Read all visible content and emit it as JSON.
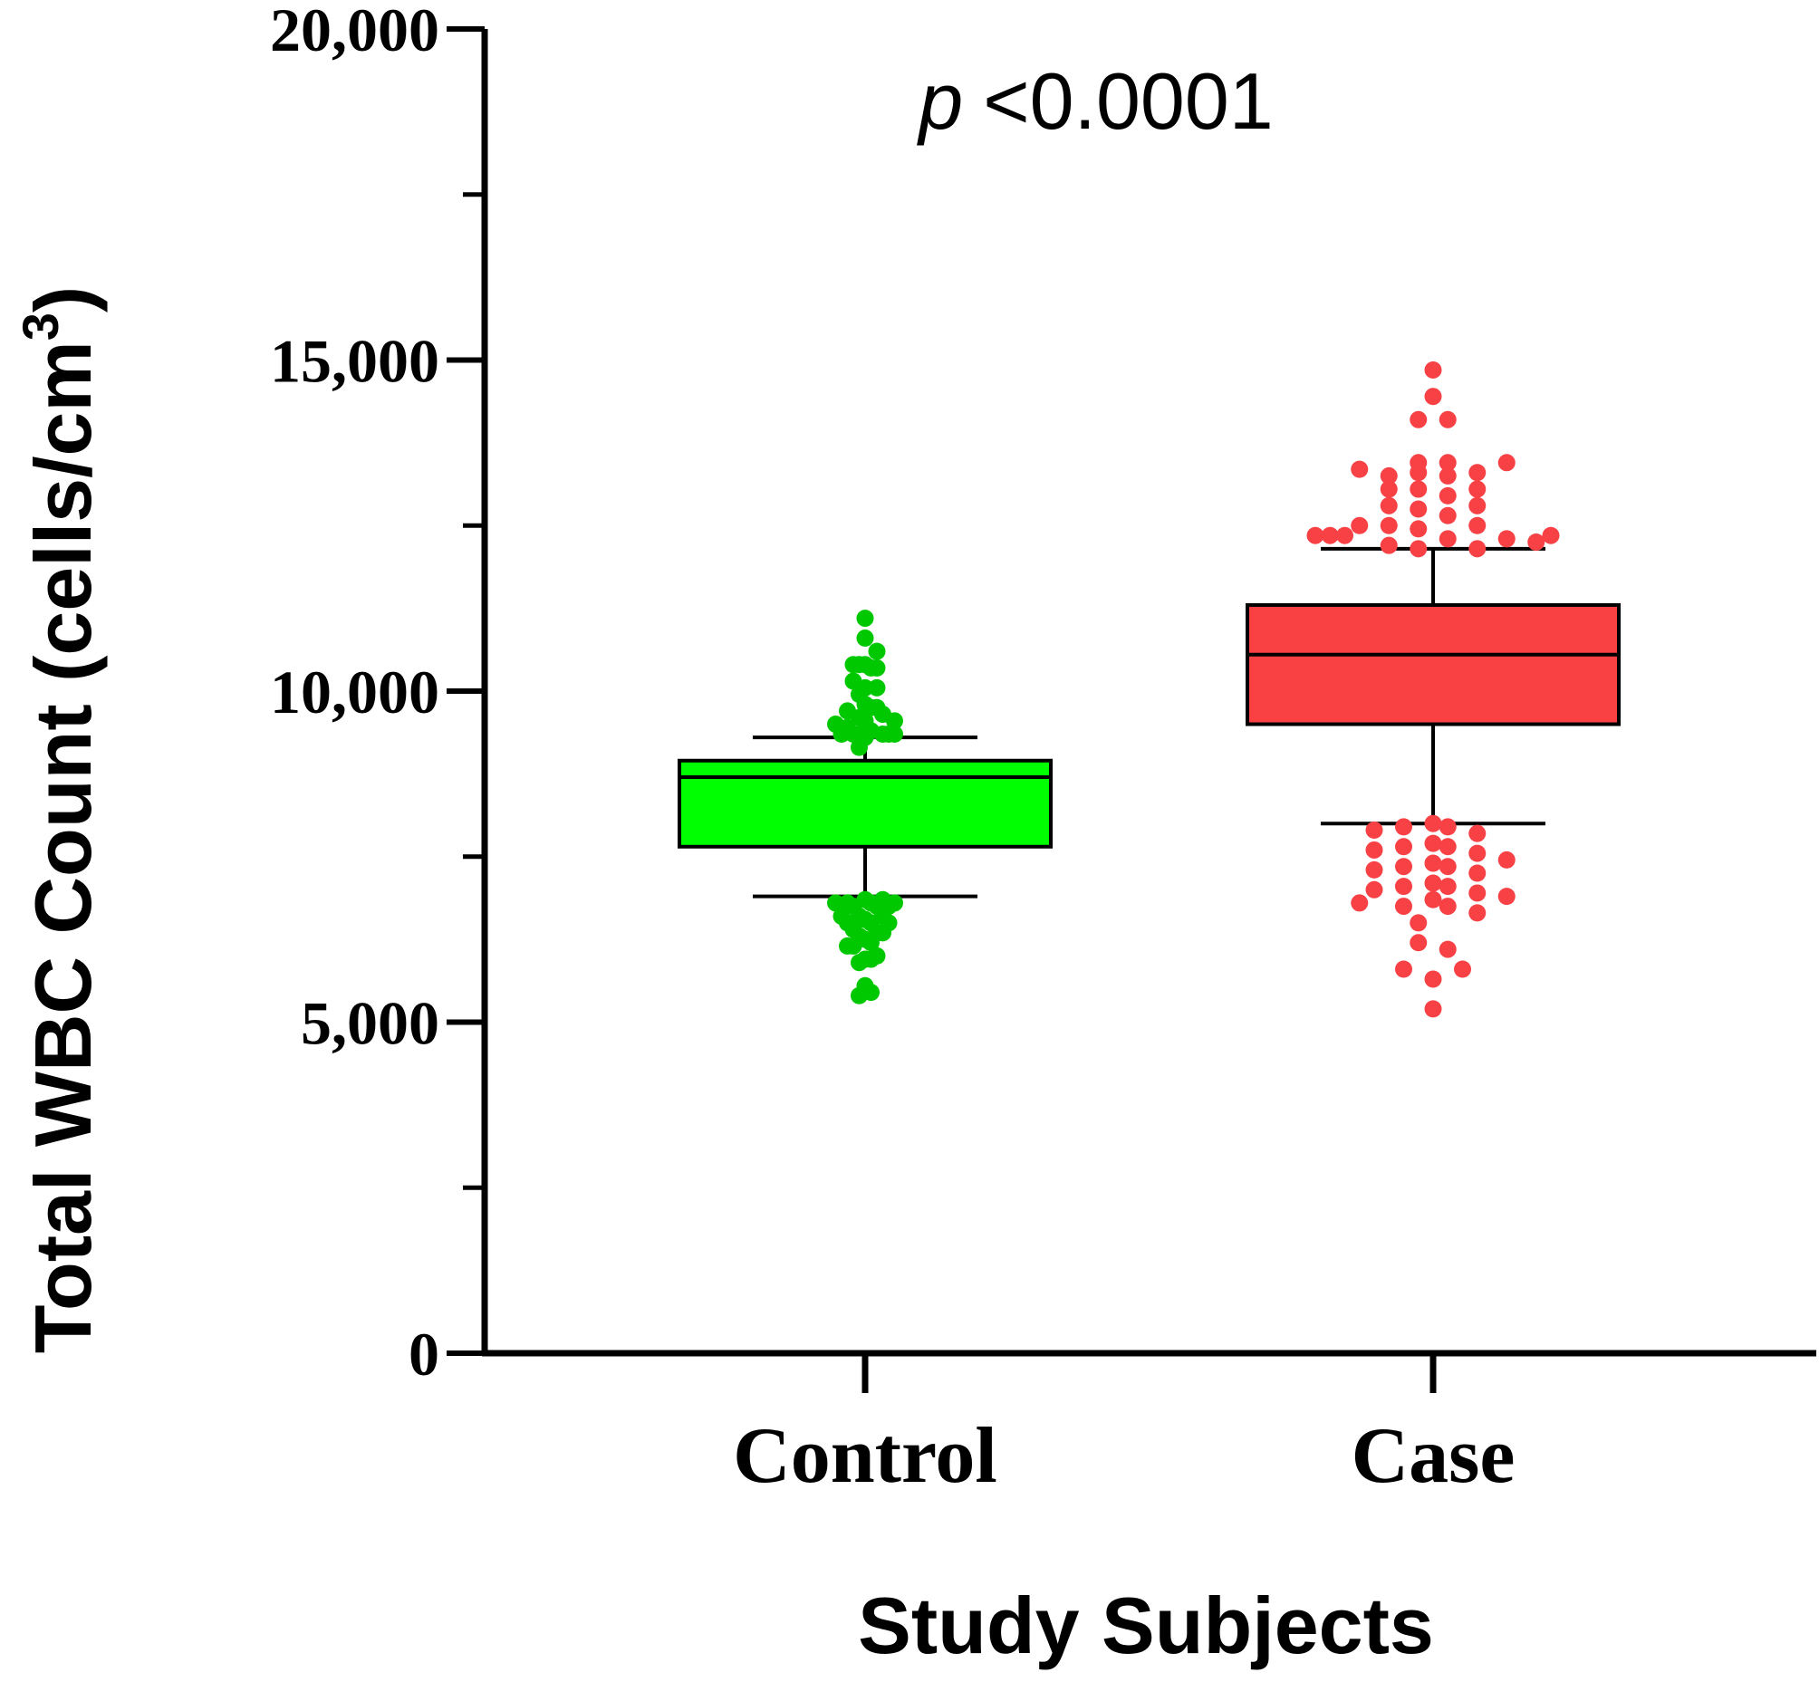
{
  "chart_data": {
    "type": "box",
    "title": "",
    "annotation": {
      "p_symbol": "p",
      "p_text": "<0.0001"
    },
    "xlabel": "Study Subjects",
    "ylabel": {
      "prefix": "Total WBC Count (cells/cm",
      "superscript": "3",
      "suffix": ")"
    },
    "ylim": [
      0,
      20000
    ],
    "yticks_major": [
      0,
      5000,
      10000,
      15000,
      20000
    ],
    "ytick_labels": [
      "0",
      "5,000",
      "10,000",
      "15,000",
      "20,000"
    ],
    "yticks_minor": [
      2500,
      7500,
      12500,
      17500
    ],
    "grid": false,
    "categories": [
      "Control",
      "Case"
    ],
    "series": [
      {
        "name": "Control",
        "color": "#00ff00",
        "point_color": "#00c800",
        "whisker_low": 6900,
        "q1": 7650,
        "median": 8700,
        "q3": 8950,
        "whisker_high": 9300,
        "points": [
          [
            -0.5,
            9500
          ],
          [
            -0.4,
            9350
          ],
          [
            -0.3,
            9700
          ],
          [
            -0.3,
            9450
          ],
          [
            -0.2,
            10400
          ],
          [
            -0.2,
            10150
          ],
          [
            -0.1,
            9600
          ],
          [
            -0.1,
            9350
          ],
          [
            -0.1,
            9150
          ],
          [
            -0.1,
            10400
          ],
          [
            -0.1,
            9950
          ],
          [
            -0.2,
            9350
          ],
          [
            0.0,
            11100
          ],
          [
            0.0,
            10800
          ],
          [
            0.0,
            10400
          ],
          [
            0.0,
            10050
          ],
          [
            0.0,
            9800
          ],
          [
            0.0,
            9550
          ],
          [
            0.0,
            9300
          ],
          [
            0.1,
            9750
          ],
          [
            0.1,
            9400
          ],
          [
            0.1,
            10350
          ],
          [
            0.2,
            10600
          ],
          [
            0.2,
            10350
          ],
          [
            0.2,
            10050
          ],
          [
            0.2,
            9750
          ],
          [
            0.3,
            9650
          ],
          [
            0.3,
            9350
          ],
          [
            0.4,
            9350
          ],
          [
            0.5,
            9550
          ],
          [
            0.5,
            9350
          ],
          [
            -0.5,
            6800
          ],
          [
            -0.4,
            6600
          ],
          [
            -0.3,
            6800
          ],
          [
            -0.3,
            6500
          ],
          [
            -0.3,
            6150
          ],
          [
            -0.2,
            6750
          ],
          [
            -0.2,
            6400
          ],
          [
            -0.2,
            6150
          ],
          [
            -0.1,
            6300
          ],
          [
            -0.1,
            5900
          ],
          [
            -0.1,
            6600
          ],
          [
            0.0,
            6850
          ],
          [
            0.0,
            6550
          ],
          [
            0.0,
            6250
          ],
          [
            0.0,
            5950
          ],
          [
            0.0,
            5550
          ],
          [
            0.1,
            6800
          ],
          [
            0.1,
            6500
          ],
          [
            0.1,
            6200
          ],
          [
            0.1,
            5950
          ],
          [
            0.2,
            6750
          ],
          [
            0.2,
            6350
          ],
          [
            0.2,
            6000
          ],
          [
            0.3,
            6850
          ],
          [
            0.3,
            6600
          ],
          [
            0.3,
            6350
          ],
          [
            0.4,
            6750
          ],
          [
            0.4,
            6500
          ],
          [
            0.5,
            6800
          ],
          [
            -0.1,
            5400
          ],
          [
            0.1,
            5450
          ]
        ]
      },
      {
        "name": "Case",
        "color": "#f94144",
        "point_color": "#f74145",
        "whisker_low": 8000,
        "q1": 9500,
        "median": 10550,
        "q3": 11300,
        "whisker_high": 12150,
        "points": [
          [
            -0.4,
            12350
          ],
          [
            -0.35,
            12350
          ],
          [
            -0.3,
            12350
          ],
          [
            -0.25,
            12500
          ],
          [
            -0.25,
            13350
          ],
          [
            -0.15,
            12200
          ],
          [
            -0.15,
            12500
          ],
          [
            -0.15,
            12800
          ],
          [
            -0.15,
            13050
          ],
          [
            -0.15,
            13250
          ],
          [
            -0.05,
            12150
          ],
          [
            -0.05,
            12450
          ],
          [
            -0.05,
            12750
          ],
          [
            -0.05,
            13050
          ],
          [
            -0.05,
            13300
          ],
          [
            -0.05,
            13450
          ],
          [
            0.0,
            14850
          ],
          [
            0.0,
            14450
          ],
          [
            -0.05,
            14100
          ],
          [
            0.05,
            14100
          ],
          [
            0.05,
            12300
          ],
          [
            0.05,
            12650
          ],
          [
            0.05,
            12950
          ],
          [
            0.05,
            13250
          ],
          [
            0.05,
            13450
          ],
          [
            0.15,
            12150
          ],
          [
            0.15,
            12500
          ],
          [
            0.15,
            12800
          ],
          [
            0.15,
            13050
          ],
          [
            0.15,
            13300
          ],
          [
            0.25,
            12300
          ],
          [
            0.25,
            13450
          ],
          [
            0.35,
            12250
          ],
          [
            0.4,
            12350
          ],
          [
            -0.2,
            7900
          ],
          [
            -0.2,
            7600
          ],
          [
            -0.2,
            7300
          ],
          [
            -0.2,
            7000
          ],
          [
            -0.25,
            6800
          ],
          [
            -0.1,
            7950
          ],
          [
            -0.1,
            7650
          ],
          [
            -0.1,
            7350
          ],
          [
            -0.1,
            7050
          ],
          [
            -0.1,
            6750
          ],
          [
            -0.05,
            6500
          ],
          [
            -0.05,
            6200
          ],
          [
            0.0,
            8000
          ],
          [
            0.0,
            7700
          ],
          [
            0.0,
            7400
          ],
          [
            0.0,
            7100
          ],
          [
            0.0,
            6850
          ],
          [
            0.05,
            7950
          ],
          [
            0.05,
            7650
          ],
          [
            0.05,
            7350
          ],
          [
            0.05,
            7050
          ],
          [
            0.05,
            6750
          ],
          [
            0.05,
            6100
          ],
          [
            0.15,
            7850
          ],
          [
            0.15,
            7550
          ],
          [
            0.15,
            7250
          ],
          [
            0.15,
            6950
          ],
          [
            0.15,
            6650
          ],
          [
            0.25,
            7450
          ],
          [
            0.25,
            6900
          ],
          [
            -0.1,
            5800
          ],
          [
            0.0,
            5650
          ],
          [
            0.1,
            5800
          ],
          [
            0.0,
            5200
          ]
        ]
      }
    ]
  }
}
